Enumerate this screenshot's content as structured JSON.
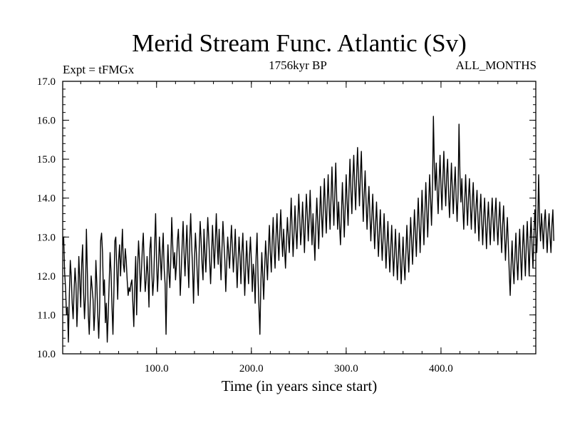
{
  "chart_data": {
    "type": "line",
    "title": "Merid Stream Func. Atlantic (Sv)",
    "subtitle_left": "Expt = tFMGx",
    "subtitle_center": "1756kyr BP",
    "subtitle_right": "ALL_MONTHS",
    "xlabel": "Time (in years since start)",
    "ylabel": "",
    "xlim": [
      1,
      500
    ],
    "ylim": [
      10.0,
      17.0
    ],
    "xticks": [
      100.0,
      200.0,
      300.0,
      400.0
    ],
    "xtick_labels": [
      "100.0",
      "200.0",
      "300.0",
      "400.0"
    ],
    "yticks": [
      10.0,
      11.0,
      12.0,
      13.0,
      14.0,
      15.0,
      16.0,
      17.0
    ],
    "ytick_labels": [
      "10.0",
      "11.0",
      "12.0",
      "13.0",
      "14.0",
      "15.0",
      "16.0",
      "17.0"
    ],
    "series": [
      {
        "name": "Merid Stream Func. Atlantic",
        "color": "#000000",
        "x_start": 1,
        "x_step": 1,
        "values": [
          12.8,
          13.0,
          12.1,
          11.7,
          11.0,
          11.2,
          10.3,
          11.5,
          12.4,
          12.0,
          11.3,
          10.9,
          11.6,
          12.2,
          11.8,
          10.7,
          11.4,
          12.5,
          11.9,
          11.2,
          12.3,
          12.8,
          11.6,
          10.9,
          11.5,
          13.2,
          12.1,
          11.0,
          10.5,
          11.3,
          12.0,
          11.7,
          11.4,
          10.6,
          11.1,
          12.4,
          11.8,
          11.0,
          10.4,
          11.2,
          12.9,
          13.1,
          12.6,
          11.5,
          11.9,
          10.8,
          11.3,
          10.3,
          11.0,
          11.8,
          12.6,
          12.1,
          11.2,
          10.5,
          11.6,
          12.9,
          13.0,
          12.2,
          11.4,
          12.4,
          12.8,
          12.0,
          12.6,
          13.2,
          12.3,
          12.1,
          12.7,
          12.4,
          11.9,
          11.5,
          11.7,
          11.6,
          11.8,
          11.9,
          11.3,
          10.7,
          11.8,
          12.5,
          11.0,
          12.2,
          12.9,
          12.4,
          11.6,
          12.1,
          12.7,
          13.1,
          12.3,
          11.6,
          11.9,
          12.5,
          12.0,
          11.2,
          12.7,
          13.0,
          12.1,
          11.5,
          11.9,
          12.8,
          13.6,
          12.4,
          11.6,
          12.2,
          13.0,
          12.5,
          11.9,
          12.6,
          13.1,
          12.2,
          11.8,
          10.5,
          11.9,
          12.8,
          12.1,
          11.7,
          12.4,
          13.5,
          12.8,
          12.2,
          12.6,
          11.9,
          12.3,
          12.9,
          13.2,
          12.5,
          11.5,
          12.1,
          12.8,
          13.4,
          12.6,
          12.0,
          12.7,
          13.3,
          12.4,
          11.7,
          12.9,
          13.6,
          12.8,
          12.2,
          11.3,
          12.4,
          13.1,
          12.6,
          12.0,
          11.5,
          12.7,
          13.4,
          12.9,
          12.3,
          11.9,
          13.2,
          12.6,
          12.1,
          12.8,
          13.5,
          13.0,
          12.4,
          11.8,
          12.5,
          13.3,
          12.7,
          12.2,
          12.9,
          13.6,
          12.8,
          12.3,
          13.2,
          12.5,
          11.9,
          12.7,
          13.4,
          12.9,
          12.4,
          11.6,
          12.3,
          13.0,
          12.6,
          12.2,
          12.8,
          13.3,
          12.7,
          12.1,
          12.6,
          13.2,
          12.4,
          11.7,
          12.4,
          13.0,
          12.5,
          11.8,
          12.6,
          13.1,
          12.3,
          11.5,
          12.2,
          12.9,
          12.3,
          11.8,
          12.5,
          13.0,
          12.4,
          11.6,
          12.3,
          12.0,
          11.3,
          12.5,
          13.1,
          12.0,
          11.2,
          10.5,
          11.8,
          12.6,
          12.0,
          11.4,
          12.2,
          12.9,
          12.4,
          11.9,
          12.7,
          13.3,
          12.6,
          12.1,
          12.9,
          13.5,
          12.7,
          12.2,
          13.0,
          13.6,
          12.9,
          12.4,
          13.1,
          13.7,
          13.0,
          12.5,
          13.2,
          12.7,
          12.2,
          12.9,
          13.5,
          13.0,
          12.6,
          13.3,
          14.0,
          13.2,
          12.5,
          13.1,
          13.8,
          13.2,
          12.7,
          13.4,
          14.1,
          13.5,
          12.8,
          13.2,
          13.9,
          13.3,
          12.6,
          13.4,
          14.1,
          13.6,
          12.9,
          13.5,
          14.2,
          13.4,
          12.8,
          13.6,
          13.0,
          12.4,
          13.3,
          14.0,
          13.4,
          12.7,
          13.5,
          14.3,
          13.6,
          13.0,
          13.8,
          14.5,
          13.7,
          13.1,
          13.9,
          14.6,
          13.8,
          13.2,
          14.0,
          14.8,
          14.0,
          13.3,
          14.1,
          14.9,
          14.0,
          13.2,
          13.9,
          13.3,
          12.8,
          13.6,
          14.4,
          13.7,
          13.0,
          13.8,
          14.6,
          13.9,
          13.3,
          14.2,
          15.0,
          14.2,
          13.6,
          14.5,
          15.1,
          14.3,
          13.7,
          14.6,
          15.3,
          14.5,
          13.8,
          14.6,
          15.2,
          14.2,
          13.4,
          14.1,
          14.7,
          13.9,
          13.2,
          13.8,
          14.3,
          13.6,
          12.9,
          13.5,
          14.1,
          13.4,
          12.7,
          13.3,
          13.9,
          13.2,
          12.5,
          13.1,
          13.7,
          13.0,
          12.4,
          13.0,
          13.6,
          12.9,
          12.2,
          12.8,
          13.4,
          12.7,
          12.1,
          12.7,
          13.3,
          12.6,
          12.0,
          12.6,
          13.2,
          12.5,
          11.9,
          12.5,
          13.1,
          12.4,
          11.8,
          12.4,
          13.0,
          12.3,
          11.9,
          12.6,
          13.3,
          12.7,
          12.1,
          12.8,
          13.5,
          12.9,
          12.3,
          13.0,
          13.7,
          13.1,
          12.5,
          13.3,
          14.0,
          13.3,
          12.6,
          13.4,
          14.2,
          13.5,
          12.8,
          13.6,
          14.4,
          13.7,
          13.0,
          13.8,
          14.6,
          14.0,
          13.3,
          14.2,
          16.1,
          14.8,
          14.2,
          14.9,
          14.2,
          13.6,
          14.4,
          15.1,
          14.3,
          13.7,
          14.5,
          15.2,
          14.4,
          13.8,
          14.6,
          15.0,
          14.1,
          13.5,
          14.2,
          14.9,
          14.2,
          13.6,
          14.3,
          14.8,
          14.0,
          13.4,
          14.1,
          15.9,
          14.6,
          13.9,
          14.5,
          13.8,
          13.2,
          13.9,
          14.6,
          13.9,
          13.3,
          14.0,
          14.5,
          13.8,
          13.2,
          13.9,
          14.4,
          13.7,
          13.1,
          13.8,
          14.2,
          13.5,
          12.9,
          13.6,
          14.1,
          13.4,
          12.8,
          13.5,
          14.0,
          13.3,
          12.7,
          13.4,
          13.9,
          13.3,
          12.8,
          13.5,
          14.0,
          13.4,
          12.9,
          13.6,
          14.0,
          13.3,
          12.8,
          13.4,
          13.9,
          13.2,
          12.6,
          13.3,
          13.8,
          13.1,
          12.4,
          13.0,
          13.5,
          12.8,
          12.1,
          11.5,
          12.3,
          12.9,
          12.2,
          11.8,
          12.5,
          13.1,
          12.4,
          11.9,
          12.6,
          13.2,
          12.5,
          11.9,
          12.7,
          13.3,
          12.6,
          12.0,
          12.8,
          13.4,
          12.7,
          12.0,
          12.9,
          13.5,
          12.8,
          12.2,
          13.0,
          13.7,
          13.1,
          12.6,
          13.3,
          14.6,
          13.4,
          12.9,
          13.6,
          13.2,
          12.7,
          13.4,
          13.7,
          13.1,
          12.6,
          13.2,
          13.6,
          13.0,
          12.6,
          13.3,
          13.7,
          12.9
        ]
      }
    ]
  }
}
